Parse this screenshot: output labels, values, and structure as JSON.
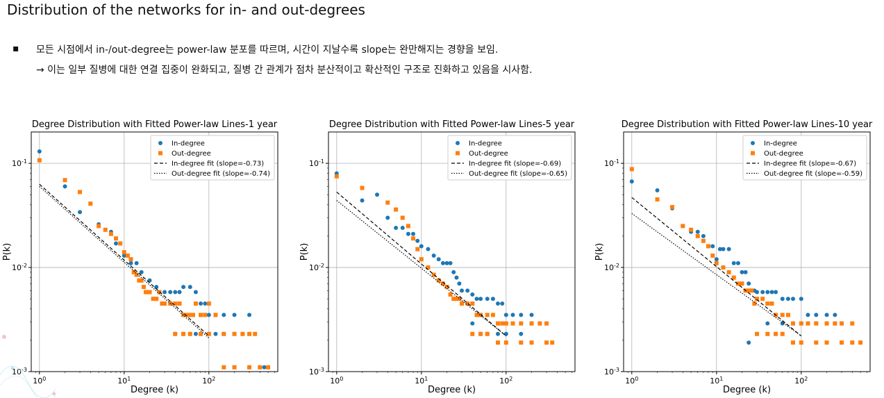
{
  "slide": {
    "title": "Distribution of the networks for in- and out-degrees",
    "bullet_mark": "▪",
    "bullet_text": "모든 시점에서 in-/out-degree는 power-law 분포를 따르며, 시간이 지날수록 slope는 완만해지는 경향을 보임.",
    "sub_text": "→ 이는 일부 질병에 대한 연결 집중이 완화되고, 질병 간 관계가 점차 분산적이고 확산적인 구조로 진화하고 있음을 시사함."
  },
  "colors": {
    "in": "#1f77b4",
    "out": "#ff7f0e",
    "fit": "#000000",
    "grid": "#b0b0b0"
  },
  "chart_data": [
    {
      "type": "scatter",
      "title": "Degree Distribution with Fitted Power-law Lines-1 year",
      "xlabel": "Degree (k)",
      "ylabel": "P(k)",
      "x_scale": "log",
      "y_scale": "log",
      "xlim": [
        0.8,
        650
      ],
      "ylim": [
        0.001,
        0.2
      ],
      "x_ticks": [
        "10^0",
        "10^1",
        "10^2"
      ],
      "y_ticks": [
        "10^-3",
        "10^-2",
        "10^-1"
      ],
      "grid": true,
      "legend": "top-right",
      "series": [
        {
          "name": "In-degree",
          "marker": "circle",
          "x": [
            1,
            2,
            3,
            5,
            7,
            8,
            10,
            12,
            14,
            16,
            20,
            24,
            26,
            30,
            35,
            40,
            45,
            50,
            60,
            70,
            80,
            90,
            100,
            120,
            150,
            200,
            300,
            40,
            50,
            60,
            70,
            80,
            100,
            120,
            150,
            200,
            250,
            300,
            400,
            450
          ],
          "y": [
            0.13,
            0.06,
            0.034,
            0.026,
            0.022,
            0.017,
            0.013,
            0.011,
            0.011,
            0.009,
            0.0075,
            0.0065,
            0.0058,
            0.0058,
            0.0058,
            0.0058,
            0.0058,
            0.0065,
            0.0065,
            0.0058,
            0.0045,
            0.0045,
            0.0035,
            0.0035,
            0.0035,
            0.0035,
            0.0035,
            0.0023,
            0.0023,
            0.0023,
            0.0023,
            0.0023,
            0.0023,
            0.0023,
            0.0023,
            0.0023,
            0.0023,
            0.0011,
            0.0011,
            0.0011
          ]
        },
        {
          "name": "Out-degree",
          "marker": "square",
          "x": [
            1,
            2,
            3,
            4,
            5,
            6,
            7,
            8,
            9,
            10,
            11,
            12,
            13,
            14,
            15,
            16,
            17,
            18,
            19,
            20,
            22,
            24,
            26,
            28,
            30,
            35,
            40,
            45,
            50,
            55,
            60,
            65,
            70,
            80,
            90,
            100,
            120,
            150,
            200,
            250,
            300,
            350,
            40,
            50,
            60,
            80,
            100,
            150,
            200,
            300,
            400,
            500
          ],
          "y": [
            0.107,
            0.069,
            0.053,
            0.041,
            0.025,
            0.023,
            0.021,
            0.019,
            0.017,
            0.014,
            0.013,
            0.012,
            0.009,
            0.0085,
            0.0075,
            0.0075,
            0.0065,
            0.0058,
            0.0058,
            0.0058,
            0.005,
            0.005,
            0.0058,
            0.0045,
            0.0045,
            0.0045,
            0.0045,
            0.0045,
            0.0035,
            0.0035,
            0.0035,
            0.0035,
            0.0045,
            0.0035,
            0.0035,
            0.0045,
            0.0035,
            0.0023,
            0.0023,
            0.0023,
            0.0023,
            0.0023,
            0.0023,
            0.0023,
            0.0023,
            0.0023,
            0.0023,
            0.0011,
            0.0011,
            0.0011,
            0.0011,
            0.0011
          ]
        },
        {
          "name": "In-degree fit (slope=-0.73)",
          "line": "dashed",
          "slope": -0.73,
          "x": [
            1,
            100
          ],
          "y": [
            0.063,
            0.0022
          ]
        },
        {
          "name": "Out-degree fit (slope=-0.74)",
          "line": "dotted",
          "slope": -0.74,
          "x": [
            1,
            100
          ],
          "y": [
            0.06,
            0.0021
          ]
        }
      ]
    },
    {
      "type": "scatter",
      "title": "Degree Distribution with Fitted Power-law Lines-5 year",
      "xlabel": "Degree (k)",
      "ylabel": "P(k)",
      "x_scale": "log",
      "y_scale": "log",
      "xlim": [
        0.8,
        650
      ],
      "ylim": [
        0.001,
        0.2
      ],
      "x_ticks": [
        "10^0",
        "10^1",
        "10^2"
      ],
      "y_ticks": [
        "10^-3",
        "10^-2",
        "10^-1"
      ],
      "grid": true,
      "legend": "top-right",
      "series": [
        {
          "name": "In-degree",
          "marker": "circle",
          "x": [
            1,
            2,
            3,
            4,
            5,
            6,
            7,
            8,
            9,
            10,
            12,
            14,
            16,
            18,
            20,
            22,
            24,
            26,
            28,
            30,
            35,
            40,
            45,
            50,
            60,
            70,
            80,
            90,
            100,
            120,
            150,
            200,
            40,
            50,
            60,
            80,
            100,
            150,
            200
          ],
          "y": [
            0.08,
            0.044,
            0.05,
            0.03,
            0.024,
            0.024,
            0.021,
            0.021,
            0.018,
            0.016,
            0.015,
            0.013,
            0.012,
            0.011,
            0.011,
            0.011,
            0.009,
            0.008,
            0.007,
            0.006,
            0.006,
            0.0055,
            0.005,
            0.005,
            0.005,
            0.005,
            0.0045,
            0.0045,
            0.0035,
            0.0035,
            0.0035,
            0.0035,
            0.0029,
            0.0023,
            0.0023,
            0.0023,
            0.0023,
            0.0023,
            0.0029
          ]
        },
        {
          "name": "Out-degree",
          "marker": "square",
          "x": [
            1,
            2,
            4,
            5,
            6,
            7,
            8,
            9,
            10,
            12,
            14,
            16,
            18,
            20,
            22,
            24,
            26,
            28,
            30,
            35,
            40,
            45,
            50,
            60,
            70,
            80,
            90,
            100,
            120,
            150,
            200,
            250,
            300,
            40,
            50,
            60,
            80,
            100,
            150,
            200,
            300,
            350
          ],
          "y": [
            0.075,
            0.058,
            0.042,
            0.036,
            0.03,
            0.025,
            0.019,
            0.015,
            0.012,
            0.01,
            0.0085,
            0.0075,
            0.007,
            0.0065,
            0.0055,
            0.005,
            0.005,
            0.005,
            0.0045,
            0.0045,
            0.0045,
            0.0035,
            0.0035,
            0.0035,
            0.0035,
            0.0029,
            0.0029,
            0.0029,
            0.0029,
            0.0029,
            0.0029,
            0.0029,
            0.0029,
            0.0023,
            0.0023,
            0.0023,
            0.0019,
            0.0019,
            0.0019,
            0.0019,
            0.0019,
            0.0019
          ]
        },
        {
          "name": "In-degree fit (slope=-0.69)",
          "line": "dashed",
          "slope": -0.69,
          "x": [
            1,
            100
          ],
          "y": [
            0.053,
            0.0022
          ]
        },
        {
          "name": "Out-degree fit (slope=-0.65)",
          "line": "dotted",
          "slope": -0.65,
          "x": [
            1,
            100
          ],
          "y": [
            0.044,
            0.0022
          ]
        }
      ]
    },
    {
      "type": "scatter",
      "title": "Degree Distribution with Fitted Power-law Lines-10 year",
      "xlabel": "Degree (k)",
      "ylabel": "P(k)",
      "x_scale": "log",
      "y_scale": "log",
      "xlim": [
        0.8,
        650
      ],
      "ylim": [
        0.001,
        0.2
      ],
      "x_ticks": [
        "10^0",
        "10^1",
        "10^2"
      ],
      "y_ticks": [
        "10^-3",
        "10^-2",
        "10^-1"
      ],
      "grid": true,
      "legend": "top-right",
      "series": [
        {
          "name": "In-degree",
          "marker": "circle",
          "x": [
            1,
            2,
            3,
            4,
            5,
            6,
            7,
            8,
            9,
            10,
            11,
            12,
            14,
            16,
            18,
            20,
            22,
            24,
            26,
            28,
            30,
            35,
            40,
            45,
            50,
            60,
            70,
            80,
            100,
            120,
            150,
            200,
            250,
            24,
            40,
            60,
            100,
            150,
            200
          ],
          "y": [
            0.067,
            0.055,
            0.037,
            0.025,
            0.022,
            0.022,
            0.02,
            0.016,
            0.016,
            0.012,
            0.015,
            0.015,
            0.015,
            0.011,
            0.011,
            0.009,
            0.009,
            0.007,
            0.006,
            0.006,
            0.0058,
            0.0058,
            0.0058,
            0.0058,
            0.0058,
            0.005,
            0.005,
            0.005,
            0.005,
            0.0035,
            0.0035,
            0.0035,
            0.0035,
            0.0019,
            0.0029,
            0.0029,
            0.0029,
            0.0029,
            0.0029
          ]
        },
        {
          "name": "Out-degree",
          "marker": "square",
          "x": [
            1,
            2,
            3,
            4,
            5,
            6,
            7,
            8,
            9,
            10,
            12,
            14,
            16,
            18,
            20,
            22,
            24,
            26,
            28,
            30,
            35,
            40,
            45,
            50,
            60,
            70,
            80,
            100,
            120,
            150,
            200,
            250,
            300,
            400,
            30,
            40,
            50,
            60,
            80,
            100,
            150,
            200,
            300,
            400,
            500
          ],
          "y": [
            0.088,
            0.045,
            0.038,
            0.025,
            0.023,
            0.02,
            0.018,
            0.016,
            0.013,
            0.011,
            0.01,
            0.009,
            0.008,
            0.007,
            0.007,
            0.006,
            0.006,
            0.006,
            0.0045,
            0.005,
            0.005,
            0.0045,
            0.0045,
            0.0035,
            0.0035,
            0.0035,
            0.0029,
            0.0029,
            0.0029,
            0.0029,
            0.0029,
            0.0029,
            0.0029,
            0.0029,
            0.0023,
            0.0023,
            0.0023,
            0.0023,
            0.0019,
            0.0019,
            0.0019,
            0.0019,
            0.0019,
            0.0019,
            0.0019
          ]
        },
        {
          "name": "In-degree fit (slope=-0.67)",
          "line": "dashed",
          "slope": -0.67,
          "x": [
            1,
            100
          ],
          "y": [
            0.047,
            0.0022
          ]
        },
        {
          "name": "Out-degree fit (slope=-0.59)",
          "line": "dotted",
          "slope": -0.59,
          "x": [
            1,
            100
          ],
          "y": [
            0.033,
            0.0022
          ]
        }
      ]
    }
  ]
}
